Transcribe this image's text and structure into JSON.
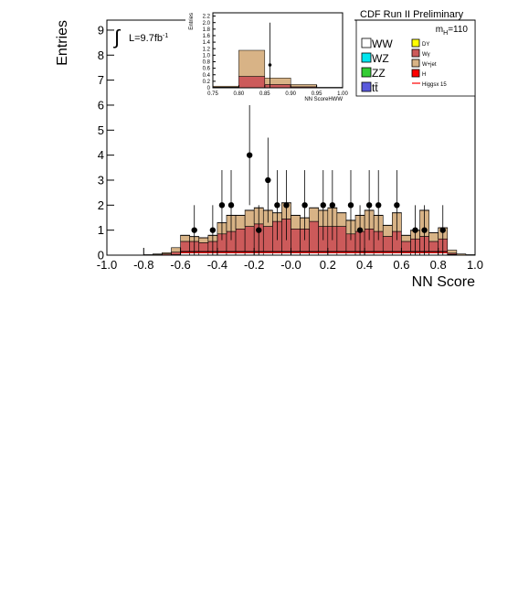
{
  "chart_data": [
    {
      "type": "histogram",
      "title": "CDF Run II Preliminary",
      "x_label": "NN Score",
      "y_label": "Entries",
      "mass_label": "m",
      "mass_sub": "H",
      "mass_value": "=110",
      "integral": "∫",
      "lumi": "L=9.7fb",
      "lumi_sup": "-1",
      "xlim": [
        -1,
        1
      ],
      "ylim": [
        0,
        9.4
      ],
      "xticks": [
        {
          "value": -1,
          "label": "-1.0"
        },
        -0.8,
        -0.6,
        -0.4,
        -0.2,
        {
          "value": 0,
          "label": "-0.0"
        },
        0.2,
        0.4,
        0.6,
        0.8,
        {
          "value": 1,
          "label": "1.0"
        }
      ],
      "yticks": [
        0,
        1,
        2,
        3,
        4,
        5,
        6,
        7,
        8,
        9
      ],
      "bins": [
        -1,
        -0.95,
        -0.9,
        -0.85,
        -0.8,
        -0.75,
        -0.7,
        -0.65,
        -0.6,
        -0.55,
        -0.5,
        -0.45,
        -0.4,
        -0.35,
        -0.3,
        -0.25,
        -0.2,
        -0.15,
        -0.1,
        -0.05,
        0,
        0.05,
        0.1,
        0.15,
        0.2,
        0.25,
        0.3,
        0.35,
        0.4,
        0.45,
        0.5,
        0.55,
        0.6,
        0.65,
        0.7,
        0.75,
        0.8,
        0.85,
        0.9,
        0.95,
        1
      ],
      "series": [
        {
          "name": "WW",
          "color": "#ffffff",
          "values": [
            0,
            0,
            0,
            0,
            0,
            0,
            0,
            0.02,
            0.1,
            0.1,
            0.1,
            0.1,
            0.1,
            0.1,
            0.1,
            0.1,
            0.1,
            0.1,
            0.1,
            0.1,
            0.1,
            0.1,
            0.1,
            0.1,
            0.1,
            0.1,
            0.1,
            0.1,
            0.1,
            0.1,
            0.1,
            0.1,
            0.1,
            0.1,
            0.1,
            0.1,
            0.1,
            0.03,
            0,
            0
          ]
        },
        {
          "name": "WZ",
          "color": "#00e5ee",
          "values": [
            0,
            0,
            0,
            0,
            0,
            0,
            0,
            0,
            0.01,
            0.01,
            0.01,
            0.01,
            0.01,
            0.01,
            0.01,
            0.01,
            0.01,
            0.01,
            0.01,
            0.01,
            0.01,
            0.01,
            0.01,
            0.01,
            0.01,
            0.01,
            0.01,
            0.01,
            0.01,
            0.01,
            0.01,
            0.01,
            0.01,
            0.01,
            0.01,
            0.01,
            0.01,
            0,
            0,
            0
          ]
        },
        {
          "name": "ZZ",
          "color": "#33cc33",
          "values": [
            0,
            0,
            0,
            0,
            0,
            0,
            0,
            0,
            0.01,
            0.01,
            0.01,
            0.01,
            0.01,
            0.01,
            0.01,
            0.01,
            0.01,
            0.01,
            0.01,
            0.01,
            0.01,
            0.01,
            0.01,
            0.01,
            0.01,
            0.01,
            0.01,
            0.01,
            0.01,
            0.01,
            0.01,
            0.01,
            0.01,
            0.01,
            0.01,
            0.01,
            0.01,
            0,
            0,
            0
          ]
        },
        {
          "name": "tt̄",
          "color": "#5a5adc",
          "values": [
            0,
            0,
            0,
            0,
            0,
            0,
            0,
            0,
            0.01,
            0.01,
            0.01,
            0.01,
            0.01,
            0.01,
            0.01,
            0.01,
            0.01,
            0.01,
            0.01,
            0.01,
            0.01,
            0.01,
            0.01,
            0.01,
            0.01,
            0.01,
            0.01,
            0.01,
            0.01,
            0.01,
            0.01,
            0.01,
            0.01,
            0.01,
            0.01,
            0.01,
            0.01,
            0,
            0,
            0
          ]
        },
        {
          "name": "DY",
          "color": "#ffff00",
          "values": [
            0,
            0,
            0,
            0,
            0,
            0,
            0,
            0,
            0.02,
            0.02,
            0.02,
            0.02,
            0.02,
            0.02,
            0.02,
            0.02,
            0.02,
            0.02,
            0.02,
            0.02,
            0.02,
            0.02,
            0.02,
            0.02,
            0.02,
            0.02,
            0.02,
            0.02,
            0.02,
            0.02,
            0.02,
            0.02,
            0.02,
            0.02,
            0.02,
            0.02,
            0.02,
            0,
            0,
            0
          ]
        },
        {
          "name": "Wγ",
          "color": "#cc5a5a",
          "values": [
            0,
            0,
            0,
            0,
            0.01,
            0.02,
            0.05,
            0.1,
            0.4,
            0.4,
            0.35,
            0.4,
            0.7,
            0.8,
            0.9,
            1.0,
            1.1,
            1.0,
            1.2,
            1.3,
            0.9,
            0.9,
            1.2,
            1.0,
            1.0,
            1.0,
            0.7,
            0.8,
            0.9,
            0.8,
            0.6,
            0.8,
            0.4,
            0.5,
            0.6,
            0.4,
            0.5,
            0.05,
            0,
            0
          ]
        },
        {
          "name": "W+jet",
          "color": "#d8b386",
          "values": [
            0,
            0,
            0,
            0,
            0.01,
            0.03,
            0.05,
            0.18,
            0.24,
            0.19,
            0.19,
            0.24,
            0.44,
            0.64,
            0.54,
            0.64,
            0.64,
            0.64,
            0.34,
            0.64,
            0.54,
            0.44,
            0.54,
            0.64,
            0.74,
            0.54,
            0.54,
            0.64,
            0.74,
            0.64,
            0.44,
            0.74,
            0.24,
            0.34,
            1.04,
            0.34,
            0.44,
            0.12,
            0.05,
            0.02
          ]
        },
        {
          "name": "H",
          "color": "#ff0000",
          "values": [
            0,
            0,
            0,
            0,
            0,
            0,
            0,
            0,
            0.01,
            0.01,
            0.01,
            0.01,
            0.01,
            0.01,
            0.01,
            0.01,
            0.01,
            0.01,
            0.01,
            0.01,
            0.01,
            0.01,
            0.01,
            0.01,
            0.01,
            0.01,
            0.01,
            0.01,
            0.01,
            0.01,
            0.01,
            0.01,
            0.01,
            0.01,
            0.01,
            0.01,
            0.01,
            0,
            0,
            0
          ]
        },
        {
          "name": "Higgsx 15",
          "color": "#ff0000",
          "style": "line",
          "values": [
            0,
            0,
            0,
            0,
            0,
            0,
            0,
            0,
            0.1,
            0.1,
            0.1,
            0.1,
            0.1,
            0.1,
            0.1,
            0.1,
            0.1,
            0.1,
            0.1,
            0.1,
            0.1,
            0.1,
            0.1,
            0.1,
            0.1,
            0.1,
            0.1,
            0.1,
            0.1,
            0.1,
            0.1,
            0.1,
            0.1,
            0.1,
            0.1,
            0.1,
            0.1,
            0,
            0,
            0
          ]
        }
      ],
      "data_points": {
        "x": [
          -0.525,
          -0.425,
          -0.375,
          -0.325,
          -0.225,
          -0.175,
          -0.125,
          -0.075,
          -0.025,
          0.075,
          0.175,
          0.225,
          0.325,
          0.375,
          0.425,
          0.475,
          0.575,
          0.675,
          0.725,
          0.825
        ],
        "values": [
          1,
          1,
          2,
          2,
          4,
          1,
          3,
          2,
          2,
          2,
          2,
          2,
          2,
          1,
          2,
          2,
          2,
          1,
          1,
          1
        ],
        "errors": [
          1,
          1,
          1.4,
          1.4,
          2,
          1,
          1.7,
          1.4,
          1.4,
          1.4,
          1.4,
          1.4,
          1.4,
          1,
          1.4,
          1.4,
          1.4,
          1,
          1,
          1
        ]
      }
    },
    {
      "type": "histogram",
      "x_label": "NN ScoreHWW",
      "y_label": "Entries",
      "xlim": [
        0.75,
        1.0
      ],
      "ylim": [
        0,
        2.3
      ],
      "xticks": [
        0.75,
        {
          "value": 0.8,
          "label": "0.80"
        },
        0.85,
        {
          "value": 0.9,
          "label": "0.90"
        },
        0.95,
        {
          "value": 1.0,
          "label": "1.00"
        }
      ],
      "yticks": [
        0,
        0.2,
        0.4,
        0.6,
        0.8,
        {
          "value": 1,
          "label": "1.0"
        },
        1.2,
        1.4,
        1.6,
        1.8,
        {
          "value": 2,
          "label": "2.0"
        },
        2.2
      ],
      "bins": [
        0.75,
        0.8,
        0.85,
        0.9,
        0.95,
        1.0
      ],
      "series": [
        {
          "name": "Wγ",
          "color": "#cc5a5a",
          "values": [
            0.02,
            0.35,
            0.1,
            0.03,
            0.005
          ]
        },
        {
          "name": "W+jet",
          "color": "#d8b386",
          "values": [
            0.03,
            0.8,
            0.2,
            0.07,
            0.01
          ]
        }
      ],
      "data_points": {
        "x": [
          0.86
        ],
        "values": [
          0.7
        ],
        "errors": [
          1.3
        ]
      }
    }
  ]
}
